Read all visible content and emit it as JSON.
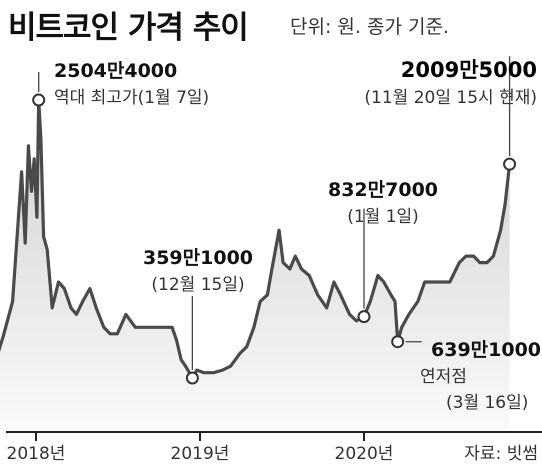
{
  "chart_data": {
    "type": "area",
    "title": "비트코인 가격 추이",
    "unit_note": "단위: 원. 종가 기준.",
    "x_ticks": [
      "2018년",
      "2019년",
      "2020년"
    ],
    "source": "자료: 빗썸",
    "series": [
      {
        "x": [
          "2017-10-01",
          "2017-10-20",
          "2017-11-10",
          "2017-11-30",
          "2017-12-08",
          "2017-12-15",
          "2017-12-22",
          "2017-12-28",
          "2018-01-03",
          "2018-01-07",
          "2018-01-12",
          "2018-01-18",
          "2018-01-26",
          "2018-02-06",
          "2018-02-20",
          "2018-03-05",
          "2018-03-20",
          "2018-04-01",
          "2018-04-15",
          "2018-05-01",
          "2018-05-15",
          "2018-06-01",
          "2018-06-15",
          "2018-07-01",
          "2018-07-20",
          "2018-08-10",
          "2018-09-01",
          "2018-09-20",
          "2018-10-10",
          "2018-10-31",
          "2018-11-10",
          "2018-11-20",
          "2018-11-30",
          "2018-12-15",
          "2018-12-25",
          "2019-01-10",
          "2019-01-31",
          "2019-02-20",
          "2019-03-10",
          "2019-03-31",
          "2019-04-15",
          "2019-05-01",
          "2019-05-15",
          "2019-05-31",
          "2019-06-10",
          "2019-06-26",
          "2019-07-05",
          "2019-07-20",
          "2019-08-01",
          "2019-08-15",
          "2019-09-01",
          "2019-09-20",
          "2019-10-10",
          "2019-10-26",
          "2019-11-10",
          "2019-11-30",
          "2019-12-15",
          "2020-01-01",
          "2020-01-15",
          "2020-02-01",
          "2020-02-14",
          "2020-03-01",
          "2020-03-10",
          "2020-03-16",
          "2020-03-25",
          "2020-04-10",
          "2020-04-30",
          "2020-05-15",
          "2020-06-01",
          "2020-06-20",
          "2020-07-10",
          "2020-07-31",
          "2020-08-15",
          "2020-09-01",
          "2020-09-15",
          "2020-10-01",
          "2020-10-15",
          "2020-10-31",
          "2020-11-10",
          "2020-11-20"
        ],
        "values": [
          4700000,
          6800000,
          9500000,
          19500000,
          14000000,
          21500000,
          18000000,
          20500000,
          16000000,
          25044000,
          22000000,
          14500000,
          13500000,
          9000000,
          11000000,
          10500000,
          9000000,
          8500000,
          9500000,
          10500000,
          9000000,
          7500000,
          7000000,
          7000000,
          8500000,
          7500000,
          7500000,
          7500000,
          7500000,
          7500000,
          6500000,
          5000000,
          4500000,
          3591000,
          4200000,
          4000000,
          4000000,
          4200000,
          4500000,
          5500000,
          6000000,
          7500000,
          9500000,
          10000000,
          12000000,
          15000000,
          12500000,
          12000000,
          13000000,
          12000000,
          11500000,
          10000000,
          9000000,
          11000000,
          10000000,
          8500000,
          8000000,
          8327000,
          9500000,
          11500000,
          11000000,
          10000000,
          9500000,
          6391000,
          7500000,
          8500000,
          9500000,
          11000000,
          11000000,
          11000000,
          11000000,
          12500000,
          13000000,
          13000000,
          12500000,
          12500000,
          13000000,
          15000000,
          17000000,
          20095000
        ]
      }
    ],
    "annotations": [
      {
        "value": "2504만4000",
        "note": "역대 최고가(1월 7일)"
      },
      {
        "value": "359만1000",
        "note": "(12월 15일)"
      },
      {
        "value": "832만7000",
        "note": "(1월 1일)"
      },
      {
        "value": "639만1000",
        "note": "연저점",
        "note2": "(3월 16일)"
      },
      {
        "value": "2009만5000",
        "note": "(11월 20일 15시 현재)"
      }
    ],
    "colors": {
      "line": "#4a4a4a",
      "fill_top": "#d0d0d0",
      "fill_bottom": "#fafafa"
    }
  }
}
